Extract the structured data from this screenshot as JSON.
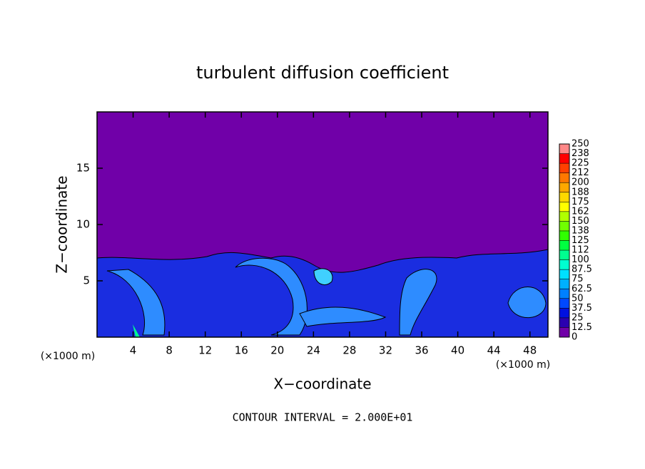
{
  "chart_data": {
    "type": "contour",
    "title": "turbulent diffusion coefficient",
    "x_label": "X−coordinate",
    "y_label": "Z−coordinate",
    "x_unit": "(×1000 m)",
    "x_unit_right": "(×1000 m)",
    "footer": "CONTOUR INTERVAL = 2.000E+01",
    "xlim": [
      0,
      50
    ],
    "xticks": [
      4,
      8,
      12,
      16,
      20,
      24,
      28,
      32,
      36,
      40,
      44,
      48
    ],
    "ylim": [
      0,
      20
    ],
    "yticks": [
      5,
      10,
      15
    ],
    "colorbar": {
      "ticks": [
        0,
        12.5,
        25,
        37.5,
        50,
        62.5,
        75,
        87.5,
        100,
        {
          "value": 112.5,
          "label": "112"
        },
        125,
        {
          "value": 137.5,
          "label": "138"
        },
        150,
        {
          "value": 162.5,
          "label": "162"
        },
        175,
        {
          "value": 187.5,
          "label": "188"
        },
        200,
        {
          "value": 212.5,
          "label": "212"
        },
        225,
        {
          "value": 237.5,
          "label": "238"
        },
        250
      ],
      "colors": [
        "#7000a8",
        "#2a00b0",
        "#0010e0",
        "#0048ff",
        "#0080ff",
        "#00b0ff",
        "#00e0ff",
        "#00ffd0",
        "#00ff90",
        "#00ff40",
        "#30ff00",
        "#70ff00",
        "#b0ff00",
        "#ffff00",
        "#ffd800",
        "#ffa800",
        "#ff7800",
        "#ff4000",
        "#ff0000",
        "#ff8888"
      ]
    }
  }
}
